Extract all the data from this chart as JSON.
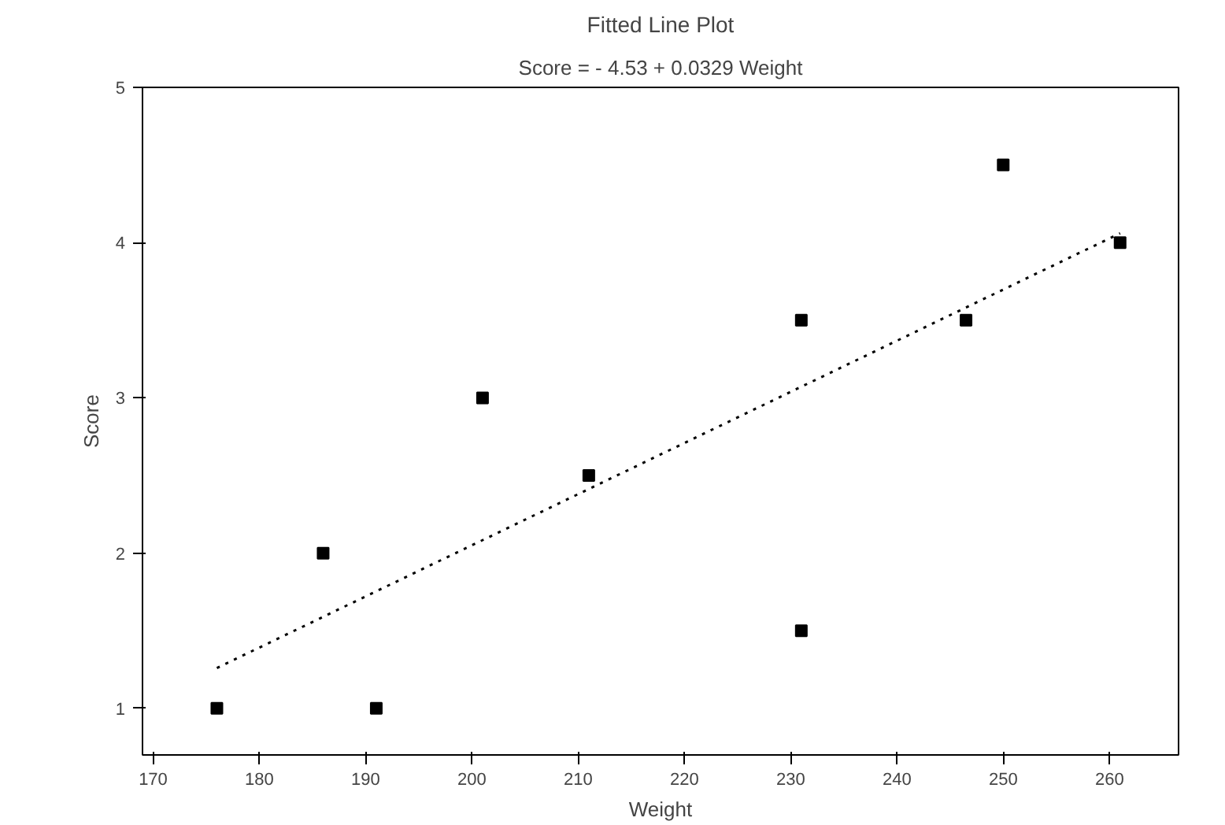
{
  "chart_data": {
    "type": "scatter",
    "title": "Fitted Line Plot",
    "subtitle": "Score = - 4.53 + 0.0329 Weight",
    "xlabel": "Weight",
    "ylabel": "Score",
    "xlim": [
      169,
      266.5
    ],
    "ylim": [
      0.7,
      5.0
    ],
    "xticks": [
      170,
      180,
      190,
      200,
      210,
      220,
      230,
      240,
      250,
      260
    ],
    "yticks": [
      1,
      2,
      3,
      4,
      5
    ],
    "grid": false,
    "series": [
      {
        "marker": "square",
        "color": "#000000",
        "x": [
          176,
          186,
          191,
          201,
          211,
          231,
          231,
          246.5,
          250,
          261
        ],
        "values": [
          1,
          2,
          1,
          3,
          2.5,
          3.5,
          1.5,
          3.5,
          4.5,
          4
        ]
      },
      {
        "type": "line",
        "color": "#000000",
        "line_style": "dotted",
        "x": [
          176,
          261
        ],
        "values": [
          1.26,
          4.06
        ]
      }
    ]
  }
}
